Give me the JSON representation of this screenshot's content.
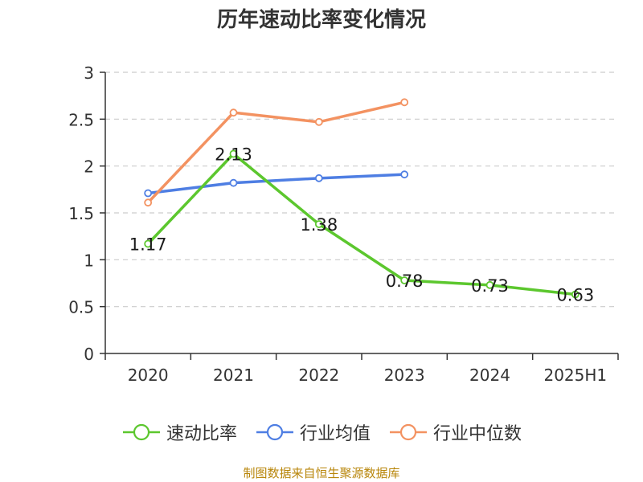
{
  "chart_data": {
    "type": "line",
    "title": "历年速动比率变化情况",
    "xlabel": "",
    "ylabel": "",
    "categories": [
      "2020",
      "2021",
      "2022",
      "2023",
      "2024",
      "2025H1"
    ],
    "ylim": [
      0,
      3
    ],
    "yticks": [
      "0",
      "0.5",
      "1",
      "1.5",
      "2",
      "2.5",
      "3"
    ],
    "grid": true,
    "legend_position": "bottom",
    "series": [
      {
        "name": "速动比率",
        "color": "#5cc72e",
        "values": [
          1.17,
          2.13,
          1.38,
          0.78,
          0.73,
          0.63
        ],
        "labels": [
          "1.17",
          "2.13",
          "1.38",
          "0.78",
          "0.73",
          "0.63"
        ]
      },
      {
        "name": "行业均值",
        "color": "#4e7ee3",
        "values": [
          1.71,
          1.82,
          1.87,
          1.91,
          null,
          null
        ]
      },
      {
        "name": "行业中位数",
        "color": "#f39261",
        "values": [
          1.61,
          2.57,
          2.47,
          2.68,
          null,
          null
        ]
      }
    ]
  },
  "source_note": "制图数据来自恒生聚源数据库"
}
